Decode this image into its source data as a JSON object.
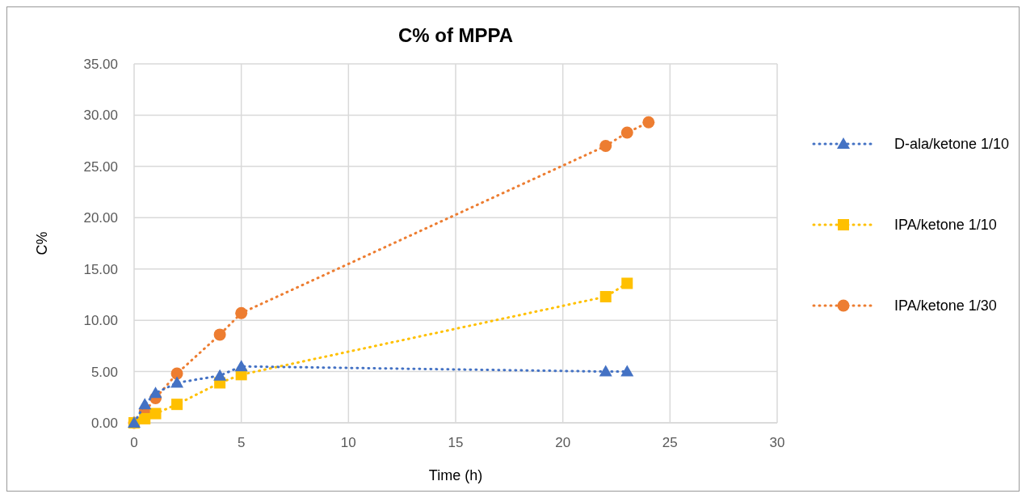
{
  "chart_data": {
    "type": "line",
    "title": "C% of MPPA",
    "xlabel": "Time (h)",
    "ylabel": "C%",
    "xlim": [
      0,
      30
    ],
    "xticks": [
      0,
      5,
      10,
      15,
      20,
      25,
      30
    ],
    "ylim": [
      0,
      35
    ],
    "yticks": [
      {
        "value": 0,
        "label": "0.00"
      },
      {
        "value": 5,
        "label": "5.00"
      },
      {
        "value": 10,
        "label": "10.00"
      },
      {
        "value": 15,
        "label": "15.00"
      },
      {
        "value": 20,
        "label": "20.00"
      },
      {
        "value": 25,
        "label": "25.00"
      },
      {
        "value": 30,
        "label": "30.00"
      },
      {
        "value": 35,
        "label": "35.00"
      }
    ],
    "grid": true,
    "legend": "right",
    "line_style": "dotted",
    "series": [
      {
        "name": "D-ala/ketone 1/10",
        "color": "#4472c4",
        "marker": "triangle",
        "x": [
          0,
          0.5,
          1,
          2,
          4,
          5,
          22,
          23
        ],
        "values": [
          0,
          1.8,
          2.9,
          3.9,
          4.6,
          5.5,
          5.0,
          5.0
        ]
      },
      {
        "name": "IPA/ketone 1/10",
        "color": "#ffc000",
        "marker": "square",
        "x": [
          0,
          0.5,
          1,
          2,
          4,
          5,
          22,
          23
        ],
        "values": [
          0,
          0.4,
          0.9,
          1.8,
          3.9,
          4.7,
          12.3,
          13.6
        ]
      },
      {
        "name": "IPA/ketone 1/30",
        "color": "#ed7d31",
        "marker": "circle",
        "x": [
          0,
          0.5,
          1,
          2,
          4,
          5,
          22,
          23,
          24
        ],
        "values": [
          0,
          1.1,
          2.4,
          4.8,
          8.6,
          10.7,
          27.0,
          28.3,
          29.3
        ]
      }
    ]
  }
}
